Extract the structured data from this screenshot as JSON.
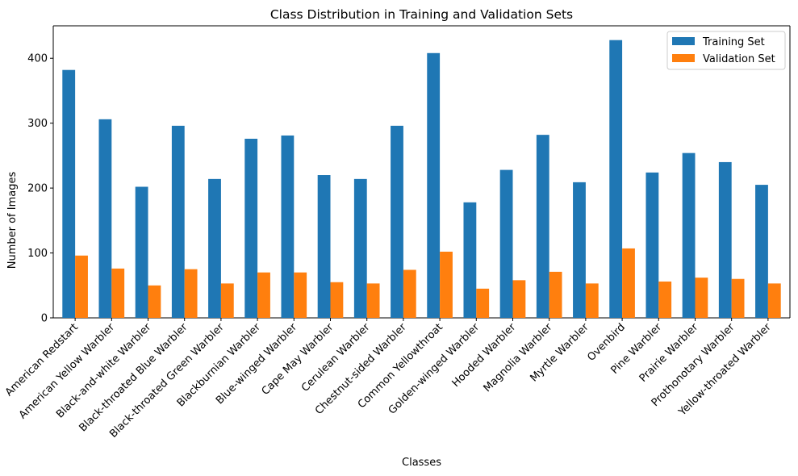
{
  "chart_data": {
    "type": "bar",
    "title": "Class Distribution in Training and Validation Sets",
    "xlabel": "Classes",
    "ylabel": "Number of Images",
    "ylim": [
      0,
      450
    ],
    "yticks": [
      0,
      100,
      200,
      300,
      400
    ],
    "legend_position": "top-right",
    "categories": [
      "American Redstart",
      "American Yellow Warbler",
      "Black-and-white Warbler",
      "Black-throated Blue Warbler",
      "Black-throated Green Warbler",
      "Blackburnian Warbler",
      "Blue-winged Warbler",
      "Cape May Warbler",
      "Cerulean Warbler",
      "Chestnut-sided Warbler",
      "Common Yellowthroat",
      "Golden-winged Warbler",
      "Hooded Warbler",
      "Magnolia Warbler",
      "Myrtle Warbler",
      "Ovenbird",
      "Pine Warbler",
      "Prairie Warbler",
      "Prothonotary Warbler",
      "Yellow-throated Warbler"
    ],
    "series": [
      {
        "name": "Training Set",
        "color": "#1f77b4",
        "values": [
          382,
          306,
          202,
          296,
          214,
          276,
          281,
          220,
          214,
          296,
          408,
          178,
          228,
          282,
          209,
          428,
          224,
          254,
          240,
          205
        ]
      },
      {
        "name": "Validation Set",
        "color": "#ff7f0e",
        "values": [
          96,
          76,
          50,
          75,
          53,
          70,
          70,
          55,
          53,
          74,
          102,
          45,
          58,
          71,
          53,
          107,
          56,
          62,
          60,
          53
        ]
      }
    ]
  }
}
